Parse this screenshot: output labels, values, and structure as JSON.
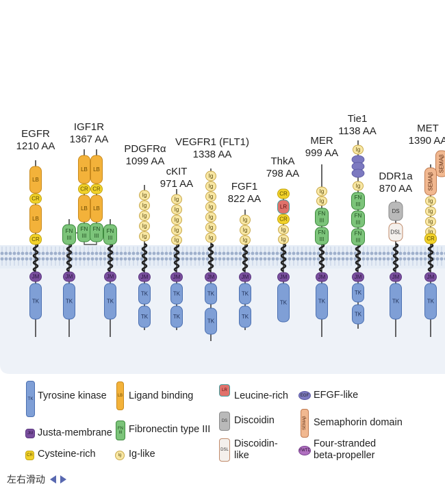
{
  "domain_types": {
    "TK": {
      "label": "TK",
      "name": "Tyrosine kinase",
      "fill": "#7f9fd6",
      "stroke": "#4a6fb0",
      "text": "#1e2e55"
    },
    "LB": {
      "label": "LB",
      "name": "Ligand binding",
      "fill": "#f3b23a",
      "stroke": "#c98a1c",
      "text": "#6a4a00"
    },
    "JM": {
      "label": "JM",
      "name": "Justa-membrane",
      "fill": "#7a4f9e",
      "stroke": "#5b3780",
      "text": "#2a1540"
    },
    "FN": {
      "label": "FN III",
      "name": "Fibronectin type III",
      "fill": "#7cc47a",
      "stroke": "#3d8a3d",
      "text": "#1d4a1d"
    },
    "CR": {
      "label": "CR",
      "name": "Cysteine-rich",
      "fill": "#f2d22a",
      "stroke": "#c2a410",
      "text": "#5a4a00"
    },
    "Ig": {
      "label": "Ig",
      "name": "Ig-like",
      "fill": "#f8e7a4",
      "stroke": "#c9a94a",
      "text": "#5a4a10"
    },
    "LR": {
      "label": "LR",
      "name": "Leucine-rich",
      "fill": "#e0726b",
      "stroke": "#3fa0a0",
      "text": "#5a1010"
    },
    "DS": {
      "label": "DS",
      "name": "Discoidin",
      "fill": "#b9b9b9",
      "stroke": "#8a8a8a",
      "text": "#333"
    },
    "DSL": {
      "label": "DSL",
      "name": "Discoidin-like",
      "fill": "#f4f0ec",
      "stroke": "#c08a6a",
      "text": "#333"
    },
    "EGF": {
      "label": "EGF",
      "name": "EFGF-like",
      "fill": "#7c79c0",
      "stroke": "#5a58a0",
      "text": "#222"
    },
    "SEMA": {
      "label": "SEMAβ",
      "name": "Semaphorin domain",
      "fill": "#f1b890",
      "stroke": "#c07a50",
      "text": "#5a2a10"
    },
    "YWTD": {
      "label": "YWTD",
      "name": "Four-stranded beta-propeller",
      "fill": "#b070c0",
      "stroke": "#7a4090",
      "text": "#2a1030"
    }
  },
  "receptors": [
    {
      "name": "EGFR",
      "length": "1210 AA",
      "extracellular": [
        "LB",
        "CR",
        "LB",
        "CR"
      ],
      "intracellular": [
        "JM",
        "TK"
      ]
    },
    {
      "name": "IGF1R",
      "length": "1367 AA",
      "extracellular": [
        "LB",
        "CR",
        "LB",
        "FN",
        "LB",
        "CR",
        "LB",
        "FN",
        "FN",
        "FN"
      ],
      "intracellular": [
        "JM",
        "TK",
        "JM",
        "TK"
      ]
    },
    {
      "name": "PDGFRα",
      "length": "1099 AA",
      "extracellular": [
        "Ig",
        "Ig",
        "Ig",
        "Ig",
        "Ig"
      ],
      "intracellular": [
        "JM",
        "TK",
        "TK"
      ]
    },
    {
      "name": "cKIT",
      "length": "971 AA",
      "extracellular": [
        "Ig",
        "Ig",
        "Ig",
        "Ig",
        "Ig"
      ],
      "intracellular": [
        "JM",
        "TK",
        "TK"
      ]
    },
    {
      "name": "VEGFR1 (FLT1)",
      "length": "1338 AA",
      "extracellular": [
        "Ig",
        "Ig",
        "Ig",
        "Ig",
        "Ig",
        "Ig",
        "Ig"
      ],
      "intracellular": [
        "JM",
        "TK",
        "TK"
      ]
    },
    {
      "name": "FGF1",
      "length": "822 AA",
      "extracellular": [
        "Ig",
        "Ig",
        "Ig"
      ],
      "intracellular": [
        "JM",
        "TK",
        "TK"
      ]
    },
    {
      "name": "ThkA",
      "length": "798 AA",
      "extracellular": [
        "CR",
        "LR",
        "CR",
        "Ig",
        "Ig"
      ],
      "intracellular": [
        "JM",
        "TK"
      ]
    },
    {
      "name": "MER",
      "length": "999 AA",
      "extracellular": [
        "Ig",
        "Ig",
        "FN",
        "FN"
      ],
      "intracellular": [
        "JM",
        "TK"
      ]
    },
    {
      "name": "Tie1",
      "length": "1138 AA",
      "extracellular": [
        "Ig",
        "EGF",
        "Ig",
        "FN",
        "FN",
        "FN"
      ],
      "intracellular": [
        "JM",
        "TK",
        "TK"
      ]
    },
    {
      "name": "DDR1a",
      "length": "870 AA",
      "extracellular": [
        "DS",
        "DSL"
      ],
      "intracellular": [
        "JM",
        "TK"
      ]
    },
    {
      "name": "MET",
      "length": "1390 AA",
      "extracellular": [
        "SEMA",
        "SEMA",
        "Ig",
        "Ig",
        "Ig",
        "Ig",
        "CR"
      ],
      "intracellular": [
        "JM",
        "TK"
      ]
    }
  ],
  "legend": [
    {
      "type": "TK",
      "text": "Tyrosine kinase"
    },
    {
      "type": "LB",
      "text": "Ligand binding"
    },
    {
      "type": "LR",
      "text": "Leucine-rich"
    },
    {
      "type": "EGF",
      "text": "EFGF-like"
    },
    {
      "type": "JM",
      "text": "Justa-membrane"
    },
    {
      "type": "FN",
      "text": "Fibronectin type III"
    },
    {
      "type": "DS",
      "text": "Discoidin"
    },
    {
      "type": "SEMA",
      "text": "Semaphorin domain"
    },
    {
      "type": "CR",
      "text": "Cysteine-rich"
    },
    {
      "type": "Ig",
      "text": "Ig-like"
    },
    {
      "type": "DSL",
      "text": "Discoidin-\nlike"
    },
    {
      "type": "YWTD",
      "text": "Four-stranded\nbeta-propeller"
    }
  ],
  "scroll_hint": "左右滑动"
}
